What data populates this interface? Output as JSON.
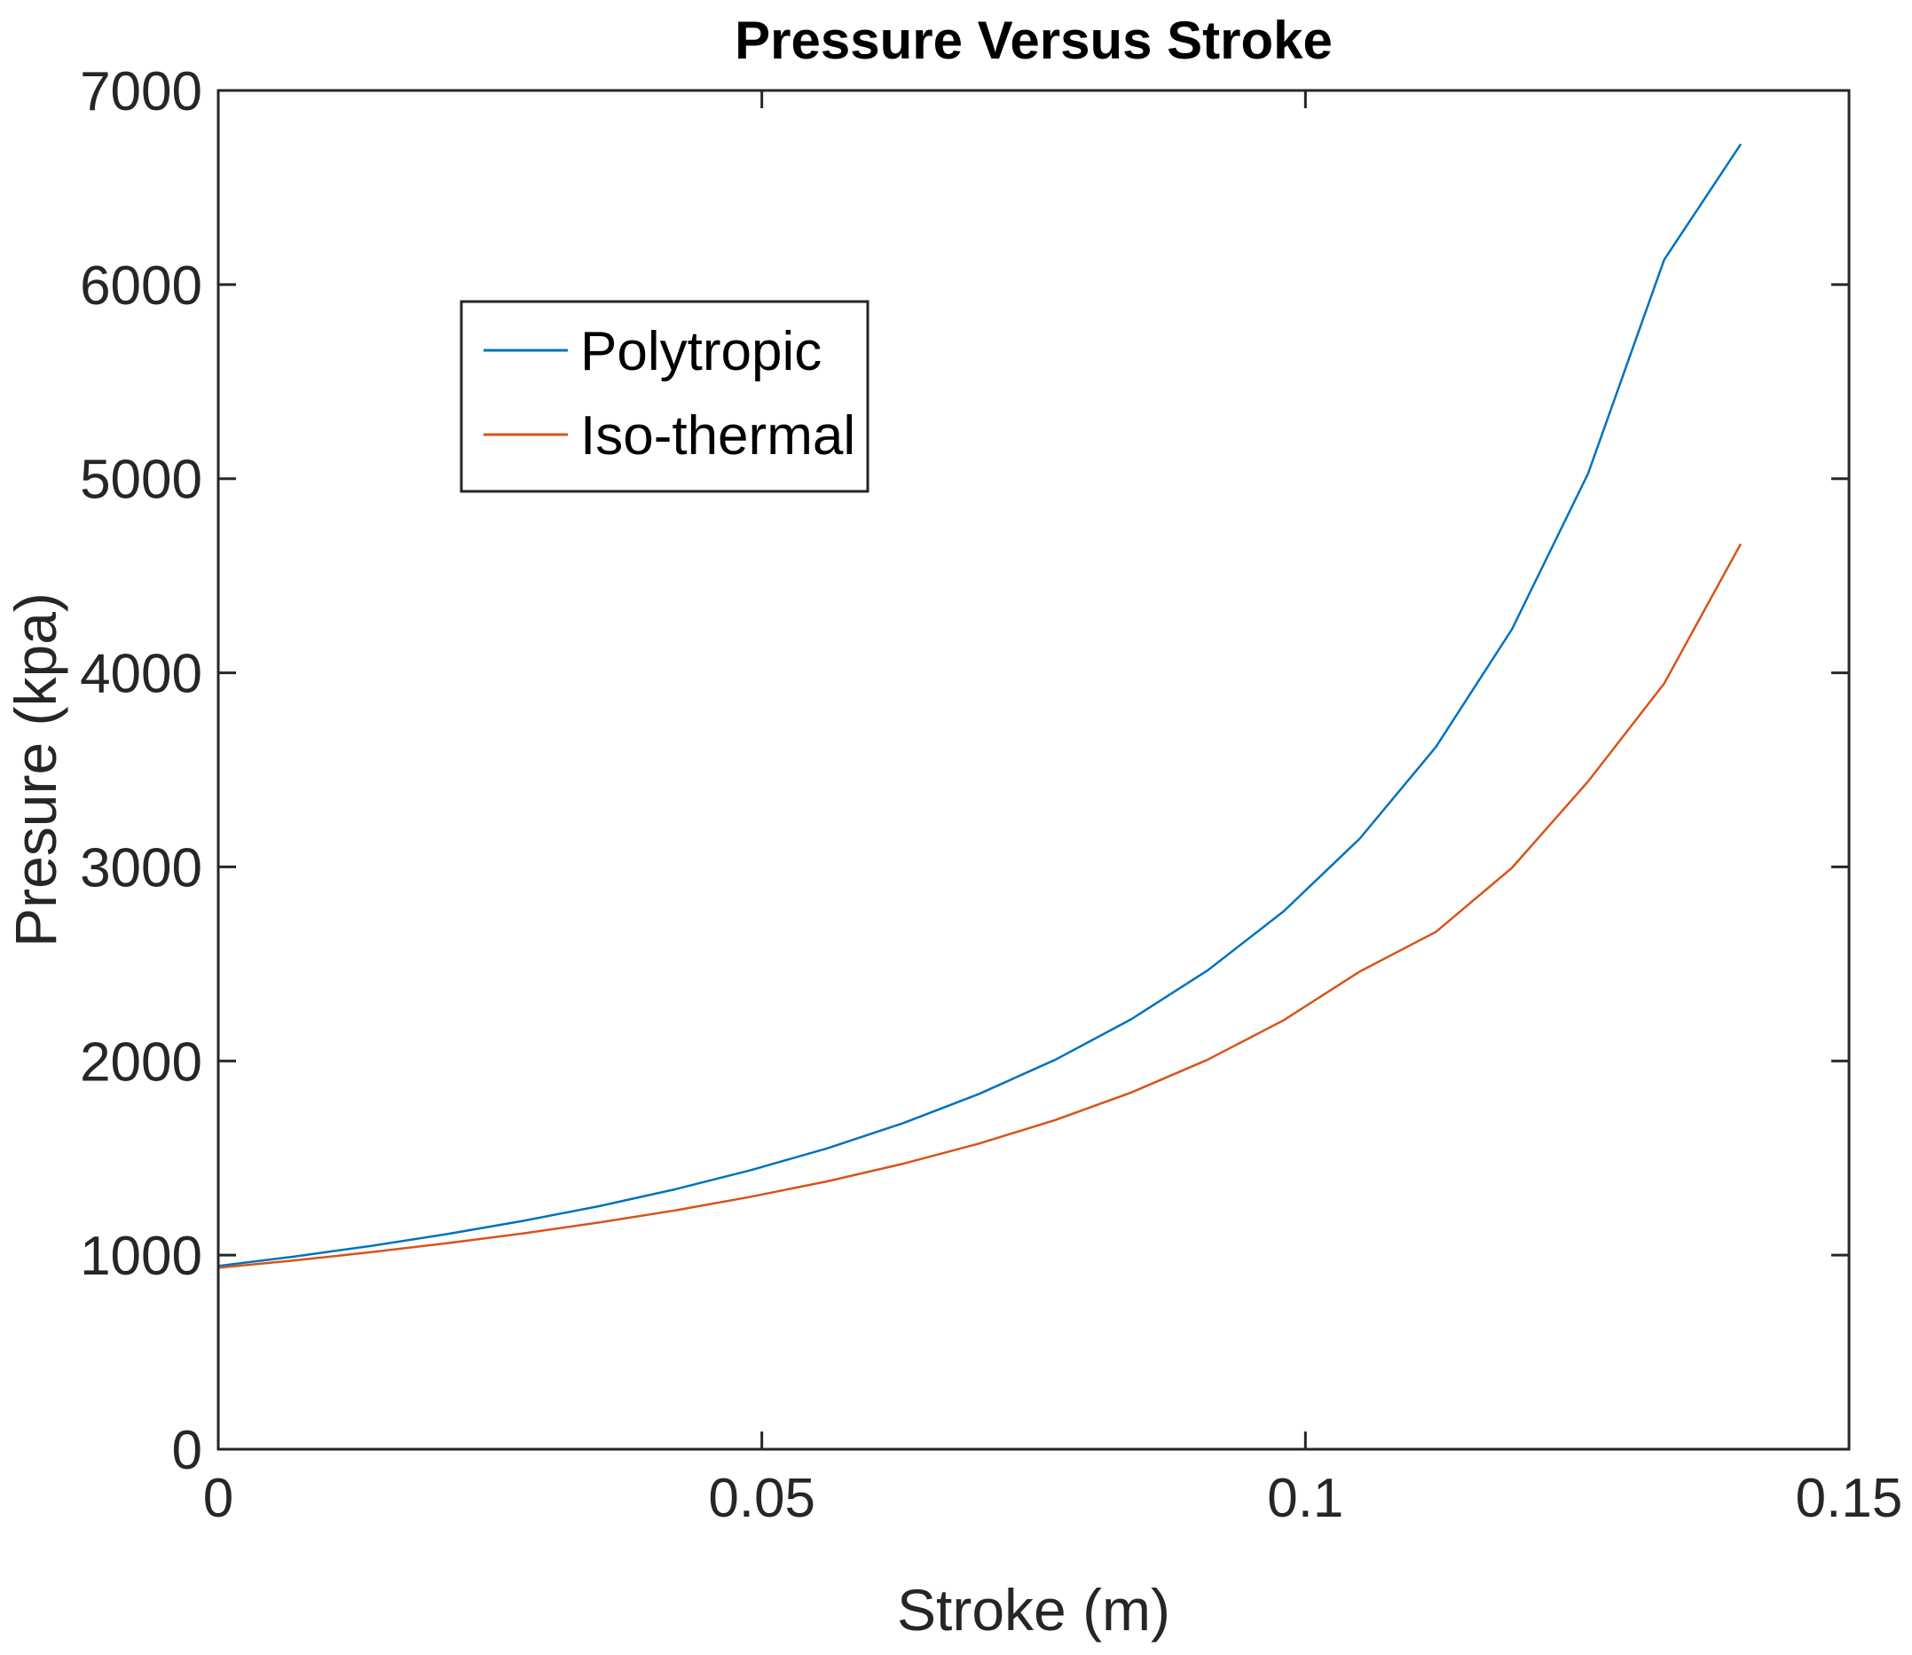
{
  "chart_data": {
    "type": "line",
    "title": "Pressure Versus Stroke",
    "xlabel": "Stroke (m)",
    "ylabel": "Presure (kpa)",
    "xlim": [
      0,
      0.15
    ],
    "ylim": [
      0,
      7000
    ],
    "xticks": [
      0,
      0.05,
      0.1,
      0.15
    ],
    "xtick_labels": [
      "0",
      "0.05",
      "0.1",
      "0.15"
    ],
    "yticks": [
      0,
      1000,
      2000,
      3000,
      4000,
      5000,
      6000,
      7000
    ],
    "ytick_labels": [
      "0",
      "1000",
      "2000",
      "3000",
      "4000",
      "5000",
      "6000",
      "7000"
    ],
    "grid": false,
    "legend_position": "upper-left-inside",
    "x": [
      0,
      0.007,
      0.014,
      0.021,
      0.028,
      0.035,
      0.042,
      0.049,
      0.056,
      0.063,
      0.07,
      0.077,
      0.084,
      0.091,
      0.098,
      0.105,
      0.112,
      0.119,
      0.126,
      0.133,
      0.14
    ],
    "series": [
      {
        "name": "Polytropic",
        "color": "#0072BD",
        "values": [
          944,
          993,
          1047,
          1108,
          1176,
          1252,
          1339,
          1438,
          1550,
          1680,
          1831,
          2007,
          2216,
          2467,
          2771,
          3146,
          3618,
          4224,
          5026,
          6128,
          6720
        ]
      },
      {
        "name": "Iso-thermal",
        "color": "#D95319",
        "values": [
          935,
          973,
          1015,
          1061,
          1111,
          1168,
          1230,
          1301,
          1380,
          1471,
          1575,
          1696,
          1838,
          2007,
          2210,
          2461,
          2665,
          2995,
          3440,
          3945,
          4660
        ]
      }
    ]
  }
}
